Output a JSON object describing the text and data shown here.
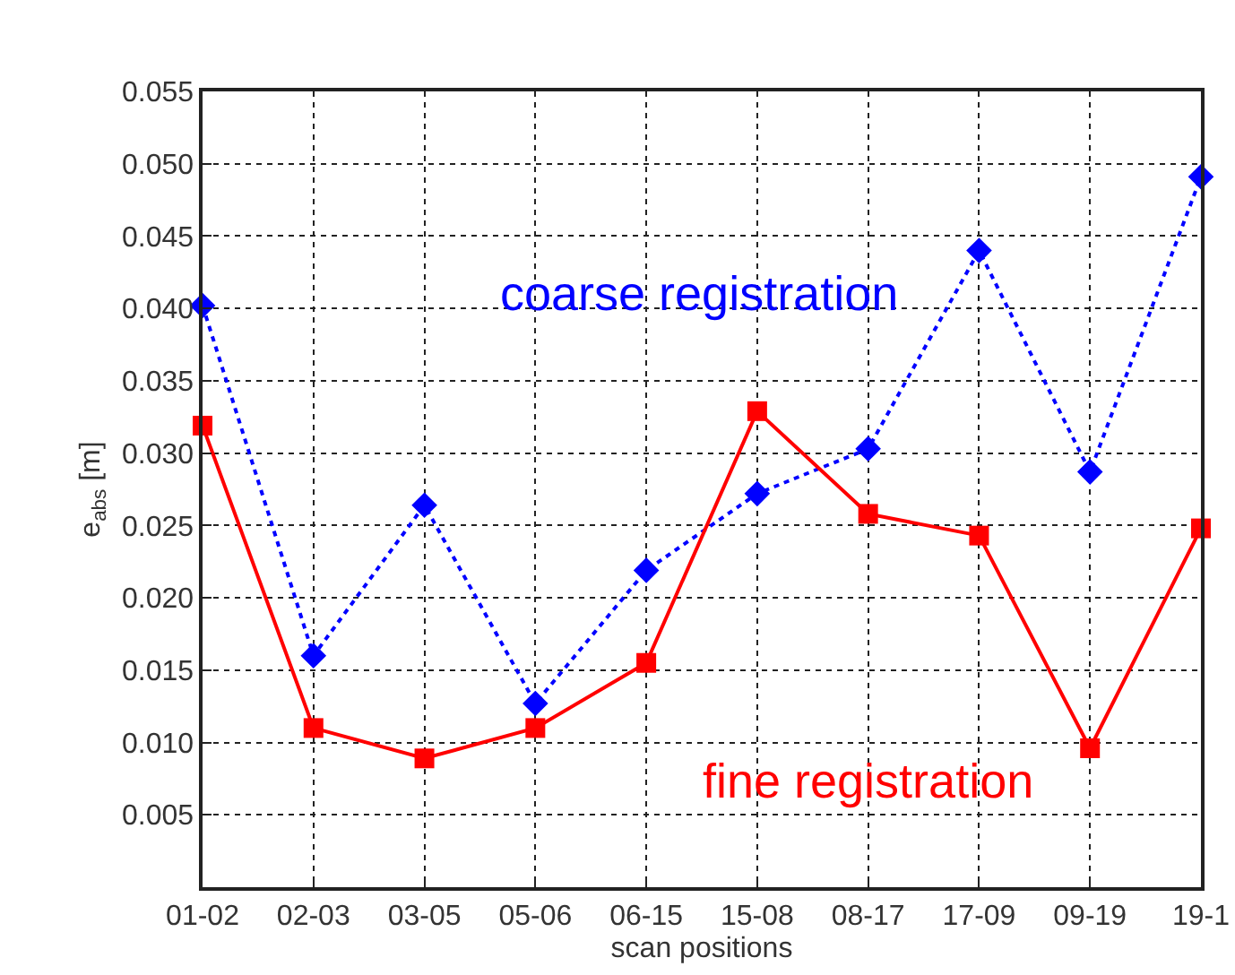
{
  "chart_data": {
    "type": "line",
    "xlabel": "scan positions",
    "ylabel": "e$_{abs}$ [m]",
    "categories": [
      "01-02",
      "02-03",
      "03-05",
      "05-06",
      "06-15",
      "15-08",
      "08-17",
      "17-09",
      "09-19",
      "19-1"
    ],
    "series": [
      {
        "name": "coarse registration",
        "color": "#0000ff",
        "marker": "diamond",
        "line_style": "dotted",
        "values": [
          0.0402,
          0.016,
          0.0264,
          0.0127,
          0.0219,
          0.0272,
          0.0303,
          0.044,
          0.0287,
          0.0491
        ]
      },
      {
        "name": "fine registration",
        "color": "#ff0000",
        "marker": "square",
        "line_style": "solid",
        "values": [
          0.0319,
          0.011,
          0.0089,
          0.011,
          0.0155,
          0.0329,
          0.0258,
          0.0243,
          0.0096,
          0.0248
        ]
      }
    ],
    "ylim": [
      0,
      0.055
    ],
    "yticks": [
      {
        "value": 0,
        "label": null
      },
      {
        "value": 0.005,
        "label": "0.005"
      },
      {
        "value": 0.01,
        "label": "0.010"
      },
      {
        "value": 0.015,
        "label": "0.015"
      },
      {
        "value": 0.02,
        "label": "0.020"
      },
      {
        "value": 0.025,
        "label": "0.025"
      },
      {
        "value": 0.03,
        "label": "0.030"
      },
      {
        "value": 0.035,
        "label": "0.035"
      },
      {
        "value": 0.04,
        "label": "0.040"
      },
      {
        "value": 0.045,
        "label": "0.045"
      },
      {
        "value": 0.05,
        "label": "0.050"
      },
      {
        "value": 0.055,
        "label": "0.055"
      }
    ],
    "grid": true,
    "legend": false
  }
}
